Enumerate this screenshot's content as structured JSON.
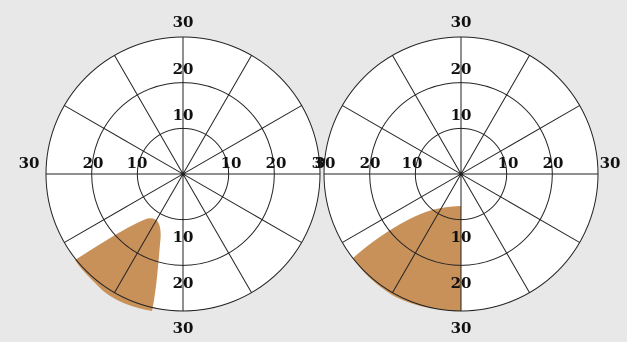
{
  "figure": {
    "background_color": "#e8e8e8",
    "disc_color": "#ffffff",
    "line_color": "#222222",
    "defect_color": "#c8915a",
    "rings_degrees": [
      10,
      20,
      30
    ],
    "spokes": 12
  },
  "fields": [
    {
      "labels": {
        "top_outer": "30",
        "top_mid": "20",
        "top_inner": "10",
        "left_outer": "30",
        "left_mid": "20",
        "left_inner": "10",
        "right_inner": "10",
        "right_mid": "20",
        "right_outer": "30",
        "bottom_inner": "10",
        "bottom_mid": "20",
        "bottom_outer": "30"
      }
    },
    {
      "labels": {
        "top_outer": "30",
        "top_mid": "20",
        "top_inner": "10",
        "left_outer": "30",
        "left_mid": "20",
        "left_inner": "10",
        "right_inner": "10",
        "right_mid": "20",
        "right_outer": "30",
        "bottom_inner": "10",
        "bottom_mid": "20",
        "bottom_outer": "30"
      }
    }
  ]
}
